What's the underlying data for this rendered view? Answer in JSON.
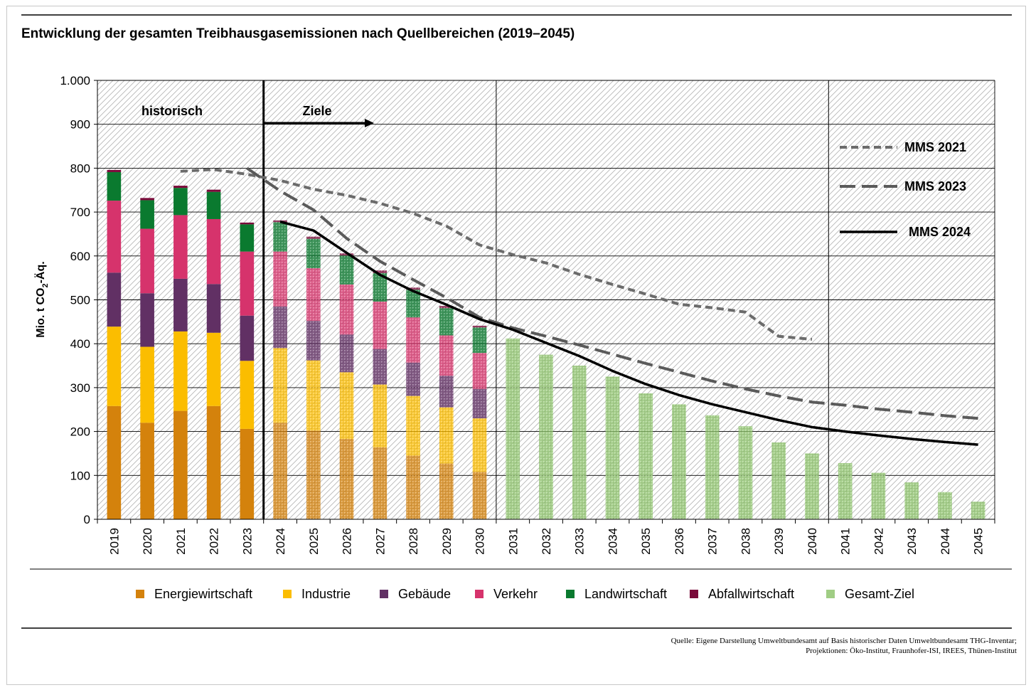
{
  "chart_data": {
    "type": "bar",
    "title": "Entwicklung der gesamten Treibhausgasemissionen nach Quellbereichen (2019–2045)",
    "ylabel": "Mio. t CO",
    "ylabel_sub": "2",
    "ylabel_suffix": "-Äq.",
    "ylim": [
      0,
      1000
    ],
    "yticks": [
      {
        "v": 0,
        "label": "0"
      },
      {
        "v": 100,
        "label": "100"
      },
      {
        "v": 200,
        "label": "200"
      },
      {
        "v": 300,
        "label": "300"
      },
      {
        "v": 400,
        "label": "400"
      },
      {
        "v": 500,
        "label": "500"
      },
      {
        "v": 600,
        "label": "600"
      },
      {
        "v": 700,
        "label": "700"
      },
      {
        "v": 800,
        "label": "800"
      },
      {
        "v": 900,
        "label": "900"
      },
      {
        "v": 1000,
        "label": "1.000"
      }
    ],
    "grid": true,
    "categories": [
      "2019",
      "2020",
      "2021",
      "2022",
      "2023",
      "2024",
      "2025",
      "2026",
      "2027",
      "2028",
      "2029",
      "2030",
      "2031",
      "2032",
      "2033",
      "2034",
      "2035",
      "2036",
      "2037",
      "2038",
      "2039",
      "2040",
      "2041",
      "2042",
      "2043",
      "2044",
      "2045"
    ],
    "historical_years": [
      "2019",
      "2020",
      "2021",
      "2022",
      "2023"
    ],
    "section_dividers_after": [
      "2023",
      "2030",
      "2040"
    ],
    "annotations": {
      "historisch": "historisch",
      "ziele": "Ziele"
    },
    "colors": {
      "Energiewirtschaft": "#d4820c",
      "Industrie": "#fbbd00",
      "Gebäude": "#613064",
      "Verkehr": "#d6336c",
      "Landwirtschaft": "#0a7a2f",
      "Abfallwirtschaft": "#7a0a3a",
      "Gesamt-Ziel": "#8fc46e"
    },
    "series": [
      {
        "name": "Energiewirtschaft",
        "values": [
          258,
          220,
          247,
          258,
          206,
          220,
          202,
          183,
          164,
          145,
          127,
          108,
          null,
          null,
          null,
          null,
          null,
          null,
          null,
          null,
          null,
          null,
          null,
          null,
          null,
          null,
          null
        ]
      },
      {
        "name": "Industrie",
        "values": [
          181,
          173,
          181,
          167,
          155,
          170,
          160,
          152,
          143,
          136,
          128,
          122,
          null,
          null,
          null,
          null,
          null,
          null,
          null,
          null,
          null,
          null,
          null,
          null,
          null,
          null,
          null
        ]
      },
      {
        "name": "Gebäude",
        "values": [
          123,
          122,
          120,
          111,
          103,
          95,
          90,
          86,
          81,
          76,
          72,
          67,
          null,
          null,
          null,
          null,
          null,
          null,
          null,
          null,
          null,
          null,
          null,
          null,
          null,
          null,
          null
        ]
      },
      {
        "name": "Verkehr",
        "values": [
          164,
          147,
          145,
          148,
          146,
          125,
          120,
          114,
          108,
          103,
          92,
          82,
          null,
          null,
          null,
          null,
          null,
          null,
          null,
          null,
          null,
          null,
          null,
          null,
          null,
          null,
          null
        ]
      },
      {
        "name": "Landwirtschaft",
        "values": [
          65,
          65,
          62,
          62,
          62,
          67,
          67,
          66,
          65,
          63,
          62,
          58,
          null,
          null,
          null,
          null,
          null,
          null,
          null,
          null,
          null,
          null,
          null,
          null,
          null,
          null,
          null
        ]
      },
      {
        "name": "Abfallwirtschaft",
        "values": [
          5,
          5,
          5,
          5,
          4,
          4,
          5,
          5,
          6,
          5,
          5,
          4,
          null,
          null,
          null,
          null,
          null,
          null,
          null,
          null,
          null,
          null,
          null,
          null,
          null,
          null,
          null
        ]
      },
      {
        "name": "Gesamt-Ziel",
        "values": [
          null,
          null,
          null,
          null,
          null,
          null,
          null,
          null,
          null,
          null,
          null,
          null,
          412,
          375,
          350,
          325,
          287,
          262,
          237,
          212,
          175,
          150,
          128,
          106,
          84,
          62,
          40
        ]
      }
    ],
    "lines": [
      {
        "name": "MMS 2021",
        "style": "dense-dash",
        "x": [
          "2021",
          "2022",
          "2023",
          "2024",
          "2025",
          "2026",
          "2027",
          "2028",
          "2029",
          "2030",
          "2031",
          "2032",
          "2033",
          "2034",
          "2035",
          "2036",
          "2037",
          "2038",
          "2039",
          "2040"
        ],
        "values": [
          793,
          797,
          786,
          772,
          752,
          738,
          720,
          697,
          668,
          625,
          603,
          584,
          558,
          535,
          513,
          490,
          482,
          472,
          417,
          410
        ]
      },
      {
        "name": "MMS 2023",
        "style": "long-dash",
        "x": [
          "2023",
          "2024",
          "2025",
          "2026",
          "2027",
          "2028",
          "2029",
          "2030",
          "2031",
          "2032",
          "2033",
          "2034",
          "2035",
          "2036",
          "2037",
          "2038",
          "2039",
          "2040",
          "2041",
          "2042",
          "2043",
          "2044",
          "2045"
        ],
        "values": [
          800,
          748,
          705,
          640,
          588,
          546,
          505,
          460,
          436,
          417,
          397,
          376,
          355,
          335,
          315,
          297,
          281,
          267,
          260,
          251,
          244,
          236,
          230
        ]
      },
      {
        "name": "MMS 2024",
        "style": "solid",
        "x": [
          "2024",
          "2025",
          "2026",
          "2027",
          "2028",
          "2029",
          "2030",
          "2031",
          "2032",
          "2033",
          "2034",
          "2035",
          "2036",
          "2037",
          "2038",
          "2039",
          "2040",
          "2041",
          "2042",
          "2043",
          "2044",
          "2045"
        ],
        "values": [
          678,
          658,
          607,
          557,
          520,
          489,
          456,
          432,
          402,
          372,
          338,
          308,
          283,
          262,
          244,
          226,
          210,
          200,
          191,
          183,
          176,
          170
        ]
      }
    ],
    "line_legend": [
      "MMS 2021",
      "MMS 2023",
      "MMS 2024"
    ],
    "legend": [
      "Energiewirtschaft",
      "Industrie",
      "Gebäude",
      "Verkehr",
      "Landwirtschaft",
      "Abfallwirtschaft",
      "Gesamt-Ziel"
    ],
    "legend_position": "bottom"
  },
  "source_lines": [
    "Quelle: Eigene Darstellung Umweltbundesamt auf Basis historischer Daten Umweltbundesamt THG-Inventar;",
    "Projektionen: Öko-Institut, Fraunhofer-ISI, IREES, Thünen-Institut"
  ]
}
